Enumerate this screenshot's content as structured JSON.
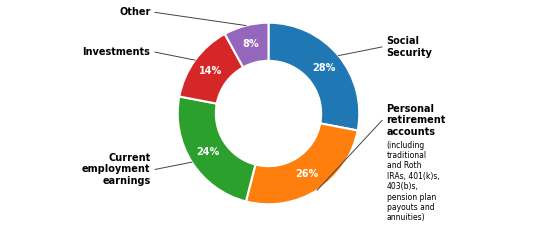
{
  "chart_data": {
    "type": "pie",
    "categories": [
      "Social\nSecurity",
      "Personal\nretirement\naccounts",
      "Current\nemployment\nearnings",
      "Investments",
      "Other"
    ],
    "values": [
      28,
      26,
      24,
      14,
      8
    ],
    "value_labels": [
      "28%",
      "26%",
      "24%",
      "14%",
      "8%"
    ],
    "data_labels": true,
    "annotations": [
      {
        "category": "Personal\nretirement\naccounts",
        "text": "(including\ntraditional\nand Roth\nIRAs, 401(k)s,\n403(b)s,\npension plan\npayouts and\nannuities)"
      }
    ]
  }
}
